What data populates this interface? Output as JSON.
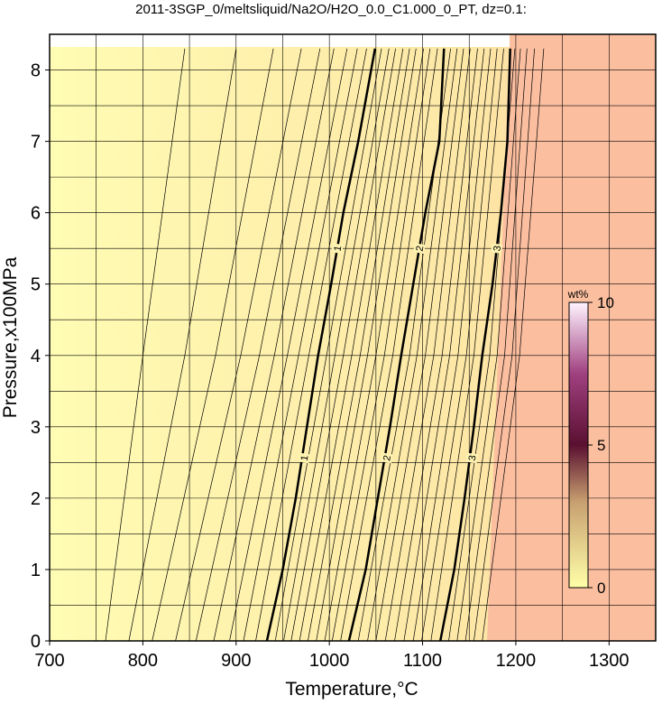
{
  "chart_data": {
    "type": "contour",
    "title": "2011-3SGP_0/meltsliquid/Na2O/H2O_0.0_C1.000_0_PT, dz=0.1:",
    "x_label": "Temperature,°C",
    "y_label": "Pressure,x100MPa",
    "xlim": [
      700,
      1350
    ],
    "ylim": [
      0,
      8.5
    ],
    "xticks": [
      700,
      800,
      900,
      1000,
      1100,
      1200,
      1300
    ],
    "yticks": [
      0,
      1,
      2,
      3,
      4,
      5,
      6,
      7,
      8
    ],
    "xgrid": [
      750,
      800,
      850,
      900,
      950,
      1000,
      1050,
      1100,
      1150,
      1200,
      1250,
      1300
    ],
    "ygrid": [
      0.5,
      1,
      1.5,
      2,
      2.5,
      3,
      3.5,
      4,
      4.5,
      5,
      5.5,
      6,
      6.5,
      7,
      7.5,
      8,
      8.5
    ],
    "grid": true,
    "colorbar": {
      "label": "wt%",
      "lim": [
        0,
        10
      ],
      "ticks": [
        0,
        5,
        10
      ]
    },
    "contours": [
      {
        "level": 0.1,
        "x": [
          760,
          800,
          845
        ],
        "y": [
          0,
          4,
          8.3
        ]
      },
      {
        "level": 0.2,
        "x": [
          785,
          845,
          900
        ],
        "y": [
          0,
          4,
          8.3
        ]
      },
      {
        "level": 0.3,
        "x": [
          810,
          878,
          940
        ],
        "y": [
          0,
          4,
          8.3
        ]
      },
      {
        "level": 0.4,
        "x": [
          835,
          905,
          970
        ],
        "y": [
          0,
          4,
          8.3
        ]
      },
      {
        "level": 0.5,
        "x": [
          857,
          925,
          990
        ],
        "y": [
          0,
          4,
          8.3
        ]
      },
      {
        "level": 0.6,
        "x": [
          876,
          941,
          1005
        ],
        "y": [
          0,
          4,
          8.3
        ]
      },
      {
        "level": 0.7,
        "x": [
          893,
          955,
          1019
        ],
        "y": [
          0,
          4,
          8.3
        ]
      },
      {
        "level": 0.8,
        "x": [
          908,
          967,
          1030
        ],
        "y": [
          0,
          4,
          8.3
        ]
      },
      {
        "level": 0.9,
        "x": [
          921,
          978,
          1040
        ],
        "y": [
          0,
          4,
          8.3
        ]
      },
      {
        "level": 1,
        "bold": true,
        "x": [
          933,
          950,
          964,
          976,
          988,
          1002,
          1015,
          1031,
          1049
        ],
        "y": [
          0,
          1,
          2,
          3,
          4,
          5,
          6,
          7,
          8.3
        ]
      },
      {
        "level": 1.1,
        "x": [
          942,
          997,
          1056
        ],
        "y": [
          0,
          4,
          8.3
        ]
      },
      {
        "level": 1.2,
        "x": [
          951,
          1006,
          1064
        ],
        "y": [
          0,
          4,
          8.3
        ]
      },
      {
        "level": 1.3,
        "x": [
          959,
          1015,
          1071
        ],
        "y": [
          0,
          4,
          8.3
        ]
      },
      {
        "level": 1.4,
        "x": [
          968,
          1024,
          1079
        ],
        "y": [
          0,
          4,
          8.3
        ]
      },
      {
        "level": 1.5,
        "x": [
          977,
          1033,
          1086
        ],
        "y": [
          0,
          4,
          8.3
        ]
      },
      {
        "level": 1.6,
        "x": [
          986,
          1041,
          1093
        ],
        "y": [
          0,
          4,
          8.3
        ]
      },
      {
        "level": 1.7,
        "x": [
          995,
          1050,
          1101
        ],
        "y": [
          0,
          4,
          8.3
        ]
      },
      {
        "level": 1.8,
        "x": [
          1003,
          1059,
          1108
        ],
        "y": [
          0,
          4,
          8.3
        ]
      },
      {
        "level": 1.9,
        "x": [
          1012,
          1068,
          1116
        ],
        "y": [
          0,
          4,
          8.3
        ]
      },
      {
        "level": 2,
        "bold": true,
        "x": [
          1021,
          1039,
          1052,
          1065,
          1077,
          1090,
          1103,
          1118,
          1123
        ],
        "y": [
          0,
          1,
          2,
          3,
          4,
          5,
          6,
          7,
          8.3
        ]
      },
      {
        "level": 2.1,
        "x": [
          1031,
          1086,
          1130
        ],
        "y": [
          0,
          4,
          8.3
        ]
      },
      {
        "level": 2.2,
        "x": [
          1041,
          1094,
          1137
        ],
        "y": [
          0,
          4,
          8.3
        ]
      },
      {
        "level": 2.3,
        "x": [
          1050,
          1103,
          1144
        ],
        "y": [
          0,
          4,
          8.3
        ]
      },
      {
        "level": 2.4,
        "x": [
          1060,
          1112,
          1151
        ],
        "y": [
          0,
          4,
          8.3
        ]
      },
      {
        "level": 2.5,
        "x": [
          1070,
          1121,
          1159
        ],
        "y": [
          0,
          4,
          8.3
        ]
      },
      {
        "level": 2.6,
        "x": [
          1080,
          1129,
          1166
        ],
        "y": [
          0,
          4,
          8.3
        ]
      },
      {
        "level": 2.7,
        "x": [
          1090,
          1138,
          1173
        ],
        "y": [
          0,
          4,
          8.3
        ]
      },
      {
        "level": 2.8,
        "x": [
          1099,
          1147,
          1180
        ],
        "y": [
          0,
          4,
          8.3
        ]
      },
      {
        "level": 2.9,
        "x": [
          1109,
          1155,
          1187
        ],
        "y": [
          0,
          4,
          8.3
        ]
      },
      {
        "level": 3,
        "bold": true,
        "x": [
          1119,
          1134,
          1145,
          1155,
          1164,
          1175,
          1184,
          1191,
          1194
        ],
        "y": [
          0,
          1,
          2,
          3,
          4,
          5,
          6,
          7,
          8.3
        ]
      },
      {
        "level": 3.1,
        "x": [
          1128,
          1172,
          1199
        ],
        "y": [
          0,
          4,
          8.3
        ]
      },
      {
        "level": 3.2,
        "x": [
          1137,
          1180,
          1205
        ],
        "y": [
          0,
          4,
          8.3
        ]
      },
      {
        "level": 3.3,
        "x": [
          1146,
          1188,
          1212
        ],
        "y": [
          0,
          4,
          8.3
        ]
      },
      {
        "level": 3.4,
        "x": [
          1155,
          1196,
          1220
        ],
        "y": [
          0,
          4,
          8.3
        ]
      },
      {
        "level": 3.5,
        "x": [
          1164,
          1204,
          1230
        ],
        "y": [
          0,
          4,
          8.3
        ]
      }
    ]
  }
}
